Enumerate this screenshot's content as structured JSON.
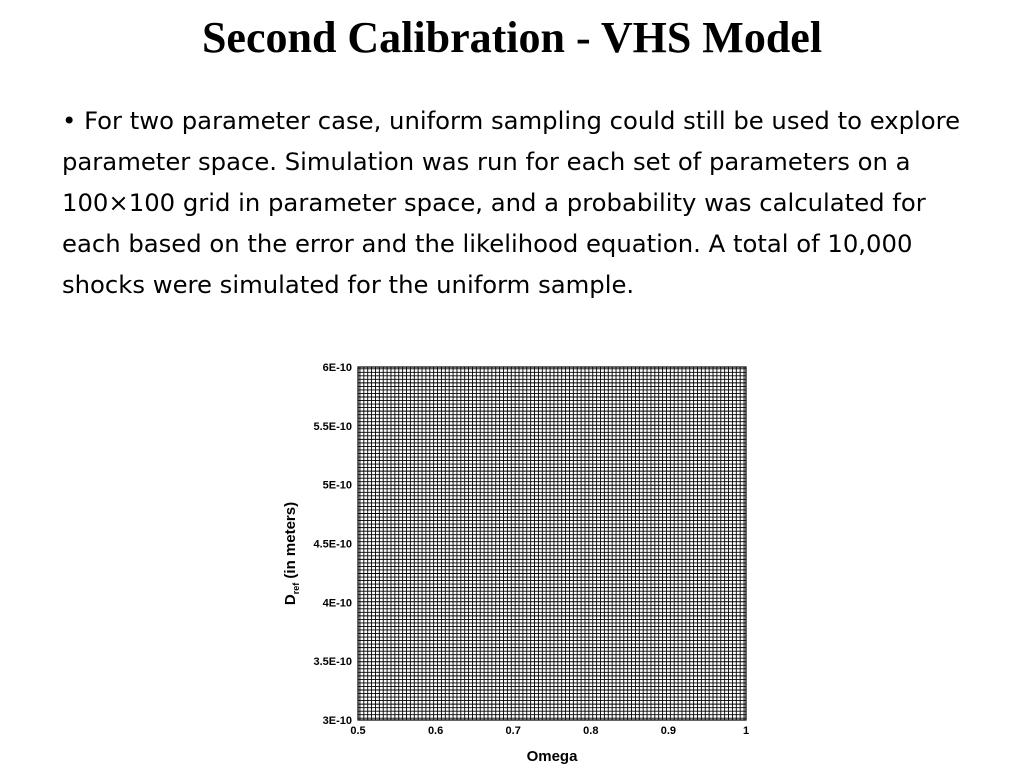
{
  "slide": {
    "title": "Second Calibration - VHS Model",
    "bullet_marker": "•",
    "paragraph": "For two parameter case, uniform sampling could still be used to explore parameter space.  Simulation was run for each set of parameters on a 100×100 grid in parameter space, and a probability was calculated for each based on the error and the likelihood equation.  A total of 10,000 shocks were simulated for the uniform sample."
  },
  "chart_data": {
    "type": "scatter",
    "description_series": "uniform 100x100 sampling grid",
    "xlabel": "Omega",
    "ylabel_main": "D",
    "ylabel_sub": "ref",
    "ylabel_rest": " (in meters)",
    "xlim": [
      0.5,
      1.0
    ],
    "ylim": [
      3e-10,
      6e-10
    ],
    "x_ticks": [
      0.5,
      0.6,
      0.7,
      0.8,
      0.9,
      1.0
    ],
    "x_tick_labels": [
      "0.5",
      "0.6",
      "0.7",
      "0.8",
      "0.9",
      "1"
    ],
    "y_ticks": [
      3e-10,
      3.5e-10,
      4e-10,
      4.5e-10,
      5e-10,
      5.5e-10,
      6e-10
    ],
    "y_tick_labels": [
      "3E-10",
      "3.5E-10",
      "4E-10",
      "4.5E-10",
      "5E-10",
      "5.5E-10",
      "6E-10"
    ],
    "grid_points_x": 100,
    "grid_points_y": 100,
    "total_samples": 10000,
    "grid": true,
    "colors": {
      "grid": "#000000",
      "background": "#ffffff"
    }
  }
}
